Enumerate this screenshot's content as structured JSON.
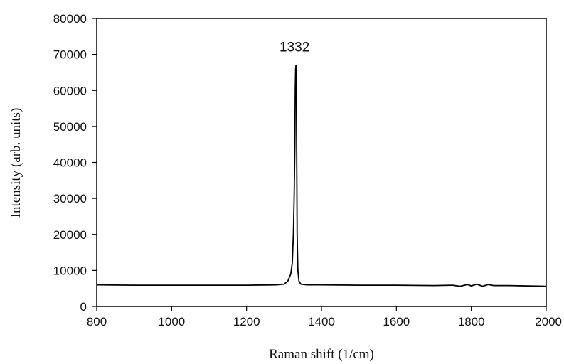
{
  "chart_data": {
    "type": "line",
    "xlabel": "Raman shift (1/cm)",
    "ylabel": "Intensity (arb. units)",
    "xlim": [
      800,
      2000
    ],
    "ylim": [
      0,
      80000
    ],
    "x_ticks": [
      800,
      1000,
      1200,
      1400,
      1600,
      1800,
      2000
    ],
    "y_ticks": [
      0,
      10000,
      20000,
      30000,
      40000,
      50000,
      60000,
      70000,
      80000
    ],
    "x_tick_labels": [
      "800",
      "1000",
      "1200",
      "1400",
      "1600",
      "1800",
      "2000"
    ],
    "y_tick_labels": [
      "0",
      "10000",
      "20000",
      "30000",
      "40000",
      "50000",
      "60000",
      "70000",
      "80000"
    ],
    "grid": false,
    "legend": "none",
    "line_color": "#000000",
    "annotations": [
      {
        "text": "1332",
        "x": 1332,
        "y": 72000
      }
    ],
    "series": [
      {
        "x": [
          800,
          900,
          1000,
          1100,
          1200,
          1280,
          1300,
          1310,
          1318,
          1322,
          1325,
          1327,
          1329,
          1330,
          1331,
          1332,
          1333,
          1334,
          1335,
          1337,
          1340,
          1345,
          1360,
          1400,
          1500,
          1600,
          1700,
          1750,
          1770,
          1790,
          1800,
          1815,
          1830,
          1845,
          1860,
          1900,
          2000
        ],
        "y": [
          6000,
          5900,
          5900,
          5900,
          5900,
          6000,
          6200,
          7000,
          9000,
          12000,
          20000,
          30000,
          45000,
          60000,
          66000,
          67000,
          62000,
          40000,
          20000,
          10000,
          7000,
          6200,
          6000,
          6000,
          5900,
          5900,
          5800,
          5900,
          5600,
          6100,
          5700,
          6200,
          5600,
          6100,
          5800,
          5800,
          5600
        ]
      }
    ]
  }
}
